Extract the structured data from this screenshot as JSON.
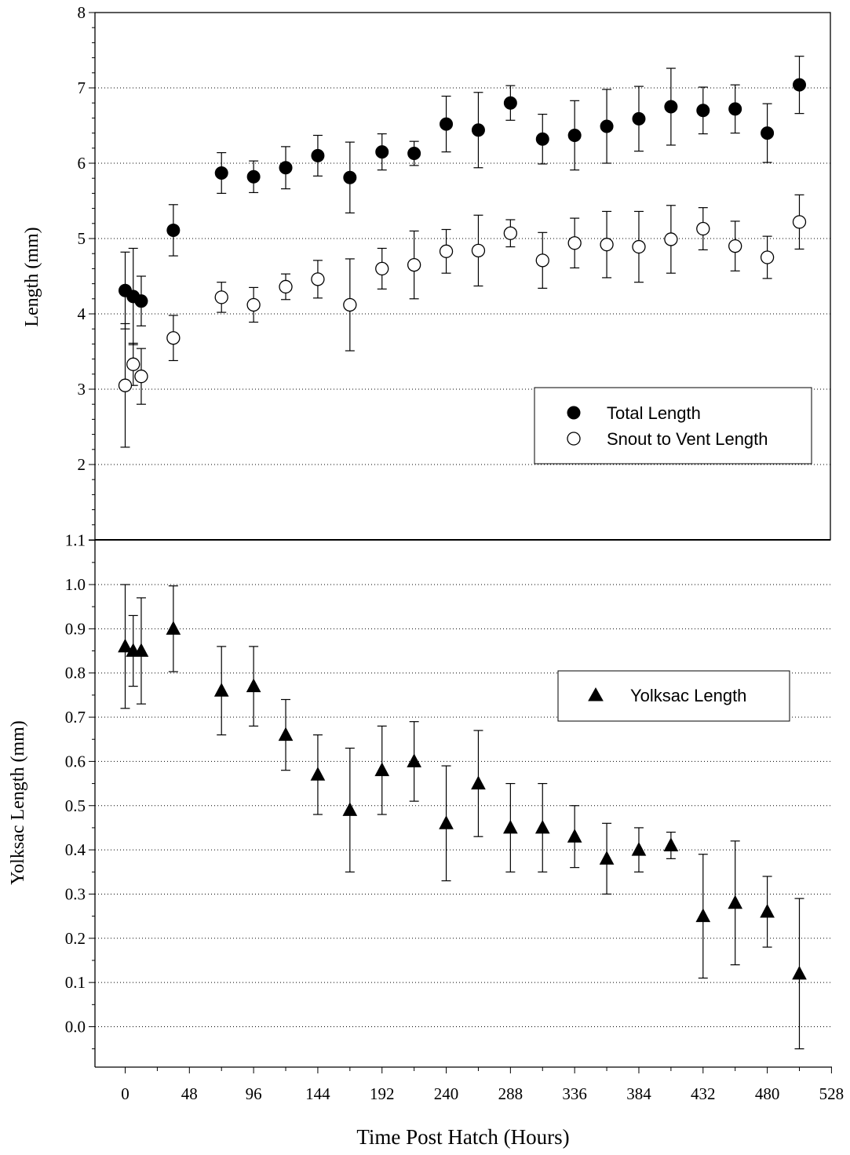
{
  "figure": {
    "xlabel": "Time Post Hatch (Hours)"
  },
  "chart_data": [
    {
      "type": "scatter",
      "panel": "top",
      "ylabel": "Length (mm)",
      "xlabel": "Time Post Hatch (Hours)",
      "xlim": [
        -24,
        528
      ],
      "ylim": [
        1,
        8
      ],
      "y_ticks": [
        2,
        3,
        4,
        5,
        6,
        7,
        8
      ],
      "grid": "horizontal dotted",
      "legend_position": "lower-right",
      "series": [
        {
          "name": "Total Length",
          "marker": "filled-circle",
          "x": [
            0,
            6,
            12,
            36,
            72,
            96,
            120,
            144,
            168,
            192,
            216,
            240,
            264,
            288,
            312,
            336,
            360,
            384,
            408,
            432,
            456,
            480,
            504
          ],
          "y": [
            4.31,
            4.23,
            4.17,
            5.11,
            5.87,
            5.82,
            5.94,
            6.1,
            5.81,
            6.15,
            6.13,
            6.52,
            6.44,
            6.8,
            6.32,
            6.37,
            6.49,
            6.59,
            6.75,
            6.7,
            6.72,
            6.4,
            7.04
          ],
          "err": [
            0.51,
            0.64,
            0.33,
            0.34,
            0.27,
            0.21,
            0.28,
            0.27,
            0.47,
            0.24,
            0.16,
            0.37,
            0.5,
            0.23,
            0.33,
            0.46,
            0.49,
            0.43,
            0.51,
            0.31,
            0.32,
            0.39,
            0.38
          ]
        },
        {
          "name": "Snout to Vent Length",
          "marker": "open-circle",
          "x": [
            0,
            6,
            12,
            36,
            72,
            96,
            120,
            144,
            168,
            192,
            216,
            240,
            264,
            288,
            312,
            336,
            360,
            384,
            408,
            432,
            456,
            480,
            504
          ],
          "y": [
            3.05,
            3.33,
            3.17,
            3.68,
            4.22,
            4.12,
            4.36,
            4.46,
            4.12,
            4.6,
            4.65,
            4.83,
            4.84,
            5.07,
            4.71,
            4.94,
            4.92,
            4.89,
            4.99,
            5.13,
            4.9,
            4.75,
            5.22
          ],
          "err": [
            0.82,
            0.28,
            0.37,
            0.3,
            0.2,
            0.23,
            0.17,
            0.25,
            0.61,
            0.27,
            0.45,
            0.29,
            0.47,
            0.18,
            0.37,
            0.33,
            0.44,
            0.47,
            0.45,
            0.28,
            0.33,
            0.28,
            0.36
          ]
        }
      ]
    },
    {
      "type": "scatter",
      "panel": "bottom",
      "ylabel": "Yolksac Length (mm)",
      "xlabel": "Time Post Hatch (Hours)",
      "xlim": [
        -24,
        528
      ],
      "ylim": [
        -0.1,
        1.1
      ],
      "y_ticks": [
        0.0,
        0.1,
        0.2,
        0.3,
        0.4,
        0.5,
        0.6,
        0.7,
        0.8,
        0.9,
        1.0,
        1.1
      ],
      "y_tick_labels": [
        "0.0",
        "0.1",
        "0.2",
        "0.3",
        "0.4",
        "0.5",
        "0.6",
        "0.7",
        "0.8",
        "0.9",
        "1.0",
        "1.1"
      ],
      "x_ticks": [
        0,
        48,
        96,
        144,
        192,
        240,
        288,
        336,
        384,
        432,
        480,
        528
      ],
      "grid": "horizontal dotted",
      "legend_position": "right",
      "series": [
        {
          "name": "Yolksac Length",
          "marker": "filled-triangle",
          "x": [
            0,
            6,
            12,
            36,
            72,
            96,
            120,
            144,
            168,
            192,
            216,
            240,
            264,
            288,
            312,
            336,
            360,
            384,
            408,
            432,
            456,
            480,
            504
          ],
          "y": [
            0.86,
            0.85,
            0.85,
            0.9,
            0.76,
            0.77,
            0.66,
            0.57,
            0.49,
            0.58,
            0.6,
            0.46,
            0.55,
            0.45,
            0.45,
            0.43,
            0.38,
            0.4,
            0.41,
            0.25,
            0.28,
            0.26,
            0.12
          ],
          "err": [
            0.14,
            0.08,
            0.12,
            0.097,
            0.1,
            0.09,
            0.08,
            0.09,
            0.14,
            0.1,
            0.09,
            0.13,
            0.12,
            0.1,
            0.1,
            0.07,
            0.08,
            0.05,
            0.03,
            0.14,
            0.14,
            0.08,
            0.17
          ]
        }
      ]
    }
  ]
}
